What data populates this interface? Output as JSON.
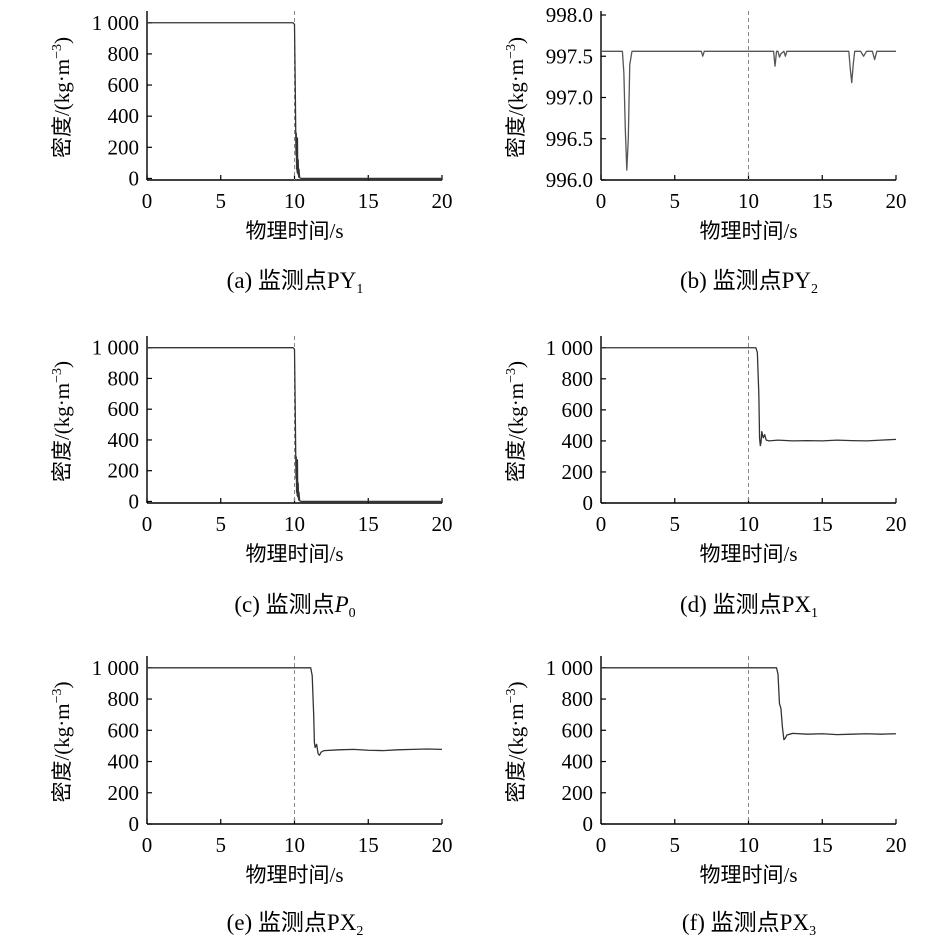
{
  "chart_data": [
    {
      "id": "a",
      "type": "line",
      "caption": "(a) 监测点PY",
      "caption_sub": "1",
      "caption_italic": false,
      "xlabel": "物理时间/s",
      "ylabel": "密度/(kg·m",
      "ylabel_sup": "−3",
      "ylabel_end": ")",
      "xlim": [
        0,
        20
      ],
      "ylim": [
        -10,
        1050
      ],
      "xticks": [
        0,
        5,
        10,
        15,
        20
      ],
      "xtick_labels": [
        "0",
        "5",
        "10",
        "15",
        "20"
      ],
      "yticks": [
        0,
        200,
        400,
        600,
        800,
        1000
      ],
      "ytick_labels": [
        "0",
        "200",
        "400",
        "600",
        "800",
        "1 000"
      ],
      "vline_x": 10,
      "grid": false,
      "series": [
        {
          "color": "#333333",
          "x": [
            0,
            9.9,
            10.0,
            10.05,
            10.1,
            10.12,
            10.14,
            10.16,
            10.18,
            10.2,
            10.22,
            10.25,
            10.28,
            10.3,
            10.35,
            10.4,
            10.5,
            11,
            15,
            20
          ],
          "y": [
            1000,
            1000,
            990,
            600,
            150,
            290,
            60,
            220,
            40,
            260,
            30,
            120,
            10,
            60,
            5,
            2,
            0,
            0,
            0,
            0
          ]
        }
      ]
    },
    {
      "id": "b",
      "type": "line",
      "caption": "(b) 监测点PY",
      "caption_sub": "2",
      "caption_italic": false,
      "xlabel": "物理时间/s",
      "ylabel": "密度/(kg·m",
      "ylabel_sup": "−3",
      "ylabel_end": ")",
      "xlim": [
        0,
        20
      ],
      "ylim": [
        996.0,
        998.0
      ],
      "xticks": [
        0,
        5,
        10,
        15,
        20
      ],
      "xtick_labels": [
        "0",
        "5",
        "10",
        "15",
        "20"
      ],
      "yticks": [
        996.0,
        996.5,
        997.0,
        997.5,
        998.0
      ],
      "ytick_labels": [
        "996.0",
        "996.5",
        "997.0",
        "997.5",
        "998.0"
      ],
      "vline_x": 10,
      "grid": false,
      "series": [
        {
          "color": "#555555",
          "x": [
            0,
            1.45,
            1.55,
            1.65,
            1.75,
            1.85,
            1.95,
            2.1,
            6.8,
            6.9,
            7.0,
            7.1,
            7.2,
            11.7,
            11.8,
            11.9,
            12.0,
            12.1,
            12.2,
            12.4,
            12.5,
            12.6,
            16.8,
            16.9,
            17.0,
            17.1,
            17.2,
            17.4,
            17.6,
            17.8,
            18.0,
            18.2,
            18.4,
            18.55,
            18.7,
            18.85,
            19.0,
            20
          ],
          "y": [
            997.56,
            997.56,
            997.3,
            996.6,
            996.12,
            996.5,
            997.4,
            997.56,
            997.56,
            997.5,
            997.56,
            997.56,
            997.56,
            997.56,
            997.38,
            997.56,
            997.56,
            997.49,
            997.53,
            997.56,
            997.5,
            997.56,
            997.56,
            997.35,
            997.18,
            997.4,
            997.56,
            997.56,
            997.56,
            997.5,
            997.56,
            997.56,
            997.56,
            997.46,
            997.56,
            997.56,
            997.56,
            997.56
          ]
        }
      ]
    },
    {
      "id": "c",
      "type": "line",
      "caption": "(c) 监测点",
      "caption_var": "P",
      "caption_sub": "0",
      "caption_italic": true,
      "xlabel": "物理时间/s",
      "ylabel": "密度/(kg·m",
      "ylabel_sup": "−3",
      "ylabel_end": ")",
      "xlim": [
        0,
        20
      ],
      "ylim": [
        -10,
        1050
      ],
      "xticks": [
        0,
        5,
        10,
        15,
        20
      ],
      "xtick_labels": [
        "0",
        "5",
        "10",
        "15",
        "20"
      ],
      "yticks": [
        0,
        200,
        400,
        600,
        800,
        1000
      ],
      "ytick_labels": [
        "0",
        "200",
        "400",
        "600",
        "800",
        "1 000"
      ],
      "vline_x": 10,
      "grid": false,
      "series": [
        {
          "color": "#333333",
          "x": [
            0,
            9.9,
            10.0,
            10.05,
            10.1,
            10.12,
            10.14,
            10.16,
            10.18,
            10.2,
            10.22,
            10.25,
            10.28,
            10.3,
            10.35,
            10.4,
            10.5,
            11,
            15,
            20
          ],
          "y": [
            1000,
            1000,
            990,
            600,
            150,
            290,
            60,
            230,
            40,
            270,
            30,
            120,
            10,
            60,
            5,
            2,
            0,
            0,
            0,
            0
          ]
        }
      ]
    },
    {
      "id": "d",
      "type": "line",
      "caption": "(d) 监测点PX",
      "caption_sub": "1",
      "caption_italic": false,
      "xlabel": "物理时间/s",
      "ylabel": "密度/(kg·m",
      "ylabel_sup": "−3",
      "ylabel_end": ")",
      "xlim": [
        0,
        20
      ],
      "ylim": [
        0,
        1050
      ],
      "xticks": [
        0,
        5,
        10,
        15,
        20
      ],
      "xtick_labels": [
        "0",
        "5",
        "10",
        "15",
        "20"
      ],
      "yticks": [
        0,
        200,
        400,
        600,
        800,
        1000
      ],
      "ytick_labels": [
        "0",
        "200",
        "400",
        "600",
        "800",
        "1 000"
      ],
      "vline_x": 10,
      "grid": false,
      "series": [
        {
          "color": "#333333",
          "x": [
            0,
            10.5,
            10.6,
            10.7,
            10.75,
            10.8,
            10.85,
            10.9,
            11.0,
            11.1,
            11.2,
            11.4,
            12,
            13,
            14,
            15,
            16,
            17,
            18,
            19,
            20
          ],
          "y": [
            1000,
            1000,
            970,
            700,
            420,
            370,
            390,
            460,
            420,
            440,
            405,
            400,
            405,
            400,
            402,
            400,
            405,
            402,
            400,
            405,
            410
          ]
        }
      ]
    },
    {
      "id": "e",
      "type": "line",
      "caption": "(e) 监测点PX",
      "caption_sub": "2",
      "caption_italic": false,
      "xlabel": "物理时间/s",
      "ylabel": "密度/(kg·m",
      "ylabel_sup": "−3",
      "ylabel_end": ")",
      "xlim": [
        0,
        20
      ],
      "ylim": [
        0,
        1050
      ],
      "xticks": [
        0,
        5,
        10,
        15,
        20
      ],
      "xtick_labels": [
        "0",
        "5",
        "10",
        "15",
        "20"
      ],
      "yticks": [
        0,
        200,
        400,
        600,
        800,
        1000
      ],
      "ytick_labels": [
        "0",
        "200",
        "400",
        "600",
        "800",
        "1 000"
      ],
      "vline_x": 10,
      "grid": false,
      "series": [
        {
          "color": "#333333",
          "x": [
            0,
            11.1,
            11.2,
            11.3,
            11.35,
            11.4,
            11.5,
            11.6,
            11.7,
            11.8,
            12,
            13,
            14,
            15,
            16,
            17,
            18,
            19,
            20
          ],
          "y": [
            1000,
            1000,
            950,
            700,
            520,
            490,
            510,
            450,
            440,
            460,
            470,
            475,
            478,
            472,
            470,
            475,
            478,
            480,
            478
          ]
        }
      ]
    },
    {
      "id": "f",
      "type": "line",
      "caption": "(f) 监测点PX",
      "caption_sub": "3",
      "caption_italic": false,
      "xlabel": "物理时间/s",
      "ylabel": "密度/(kg·m",
      "ylabel_sup": "−3",
      "ylabel_end": ")",
      "xlim": [
        0,
        20
      ],
      "ylim": [
        0,
        1050
      ],
      "xticks": [
        0,
        5,
        10,
        15,
        20
      ],
      "xtick_labels": [
        "0",
        "5",
        "10",
        "15",
        "20"
      ],
      "yticks": [
        0,
        200,
        400,
        600,
        800,
        1000
      ],
      "ytick_labels": [
        "0",
        "200",
        "400",
        "600",
        "800",
        "1 000"
      ],
      "vline_x": 10,
      "grid": false,
      "series": [
        {
          "color": "#333333",
          "x": [
            0,
            11.9,
            12.0,
            12.1,
            12.2,
            12.3,
            12.4,
            12.5,
            12.6,
            12.8,
            13,
            14,
            15,
            16,
            17,
            18,
            19,
            20
          ],
          "y": [
            1000,
            1000,
            960,
            770,
            740,
            620,
            540,
            550,
            570,
            575,
            580,
            575,
            578,
            572,
            575,
            578,
            575,
            578
          ]
        }
      ]
    }
  ]
}
